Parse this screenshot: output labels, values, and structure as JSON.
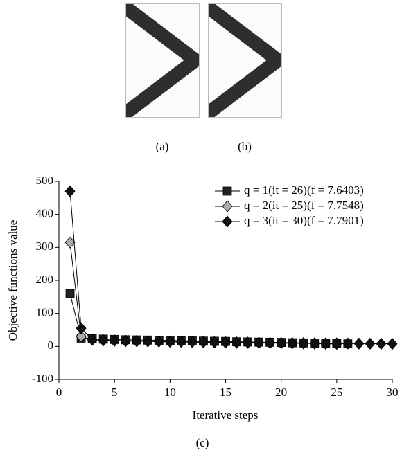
{
  "panels": [
    {
      "caption": "(a)"
    },
    {
      "caption": "(b)"
    }
  ],
  "chart_data": {
    "type": "line",
    "caption": "(c)",
    "x_label": "Iterative steps",
    "y_label": "Objective functions value",
    "xlim": [
      0,
      30
    ],
    "xticks": [
      0,
      5,
      10,
      15,
      20,
      25,
      30
    ],
    "ylim": [
      -100,
      500
    ],
    "yticks": [
      -100,
      0,
      100,
      200,
      300,
      400,
      500
    ],
    "legend": "upper right",
    "series": [
      {
        "name": "q = 1(it = 26)(f = 7.6403)",
        "color": "#222222",
        "marker": "square",
        "x": [
          1,
          2,
          3,
          4,
          5,
          6,
          7,
          8,
          9,
          10,
          11,
          12,
          13,
          14,
          15,
          16,
          17,
          18,
          19,
          20,
          21,
          22,
          23,
          24,
          25,
          26
        ],
        "values": [
          160,
          25,
          23,
          22,
          21,
          20,
          19.5,
          19,
          18.5,
          18,
          17,
          16.5,
          16,
          15.5,
          15,
          14,
          13.5,
          13,
          12.5,
          12,
          11,
          10.5,
          10,
          9,
          8.5,
          7.64
        ]
      },
      {
        "name": "q = 2(it = 25)(f = 7.7548)",
        "color": "#aaaaaa",
        "marker": "diamond",
        "x": [
          1,
          2,
          3,
          4,
          5,
          6,
          7,
          8,
          9,
          10,
          11,
          12,
          13,
          14,
          15,
          16,
          17,
          18,
          19,
          20,
          21,
          22,
          23,
          24,
          25
        ],
        "values": [
          315,
          30,
          20,
          19,
          18,
          17,
          16.5,
          16,
          15.5,
          15,
          14.5,
          14,
          13.5,
          13,
          12.5,
          12,
          11.5,
          11,
          10.5,
          10,
          9.5,
          9,
          8.5,
          8,
          7.75
        ]
      },
      {
        "name": "q = 3(it = 30)(f = 7.7901)",
        "color": "#111111",
        "marker": "diamond",
        "x": [
          1,
          2,
          3,
          4,
          5,
          6,
          7,
          8,
          9,
          10,
          11,
          12,
          13,
          14,
          15,
          16,
          17,
          18,
          19,
          20,
          21,
          22,
          23,
          24,
          25,
          26,
          27,
          28,
          29,
          30
        ],
        "values": [
          470,
          55,
          20,
          18,
          17,
          16,
          15.5,
          15,
          14.5,
          14,
          13.5,
          13,
          12.5,
          12,
          11.5,
          11.2,
          11,
          10.8,
          10.5,
          10.2,
          10,
          9.8,
          9.5,
          9.2,
          9,
          8.8,
          8.5,
          8.2,
          8,
          7.79
        ]
      }
    ]
  }
}
